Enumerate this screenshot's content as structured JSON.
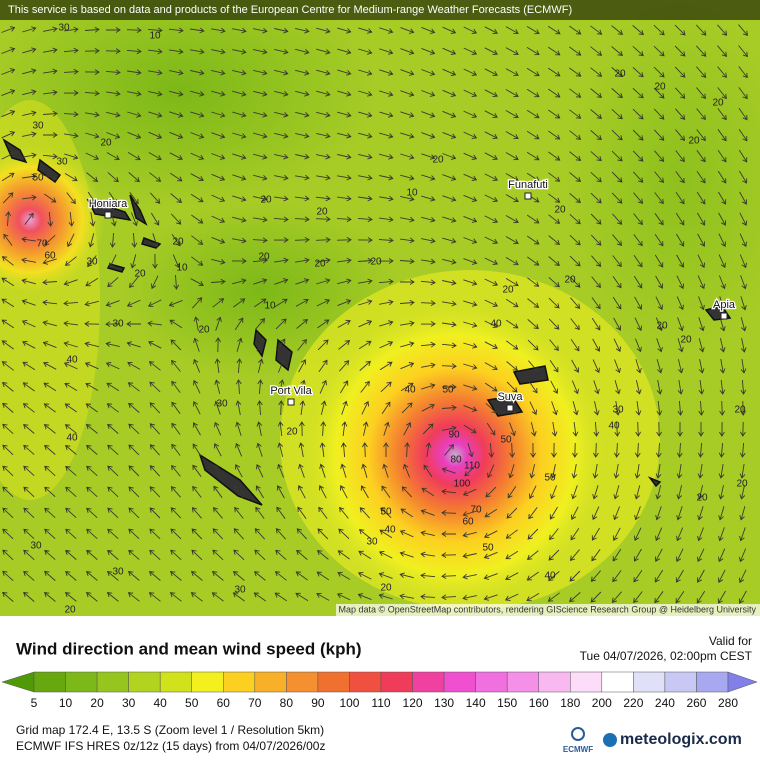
{
  "banner": "This service is based on data and products of the European Centre for Medium-range Weather Forecasts (ECMWF)",
  "map": {
    "cities": [
      "Honiara",
      "Funafuti",
      "Apia",
      "Suva",
      "Port Vila"
    ],
    "contour_labels": [
      30,
      10,
      20,
      20,
      20,
      20,
      20,
      10,
      20,
      20,
      20,
      30,
      30,
      50,
      70,
      60,
      20,
      20,
      10,
      30,
      20,
      20,
      20,
      10,
      30,
      20,
      40,
      40,
      30,
      20,
      40,
      40,
      50,
      50,
      90,
      80,
      110,
      100,
      70,
      60,
      50,
      40,
      30,
      50,
      40,
      20,
      20,
      30,
      20,
      20,
      40,
      50,
      20,
      30,
      30,
      30,
      20,
      20,
      20,
      20,
      20
    ],
    "attribution": "Map data © OpenStreetMap contributors, rendering GIScience Research Group @ Heidelberg University"
  },
  "legend": {
    "title": "Wind direction and mean wind speed (kph)",
    "valid_label": "Valid for",
    "valid_time": "Tue 04/07/2026, 02:00pm CEST",
    "ticks": [
      5,
      10,
      20,
      30,
      40,
      50,
      60,
      70,
      80,
      90,
      100,
      110,
      120,
      130,
      140,
      150,
      160,
      180,
      200,
      220,
      240,
      260,
      280
    ],
    "colors": [
      "#4f9a06",
      "#66a80e",
      "#7cb818",
      "#96c61e",
      "#b2d41e",
      "#d2e21a",
      "#f4f020",
      "#fcd020",
      "#f8b028",
      "#f49030",
      "#f07030",
      "#f05040",
      "#f03c5a",
      "#f040a0",
      "#f050d0",
      "#f070e0",
      "#f490e8",
      "#f8b8f0",
      "#fcdcf8",
      "#ffffff",
      "#e0e0f8",
      "#c8c8f4",
      "#a8a8f0",
      "#8080e8"
    ]
  },
  "footer": {
    "grid": "Grid map 172.4 E, 13.5 S (Zoom level 1 / Resolution 5km)",
    "model": "ECMWF IFS HRES 0z/12z (15 days) from  04/07/2026/00z",
    "ecmwf_logo": "ECMWF",
    "brand": "meteologix.com"
  }
}
